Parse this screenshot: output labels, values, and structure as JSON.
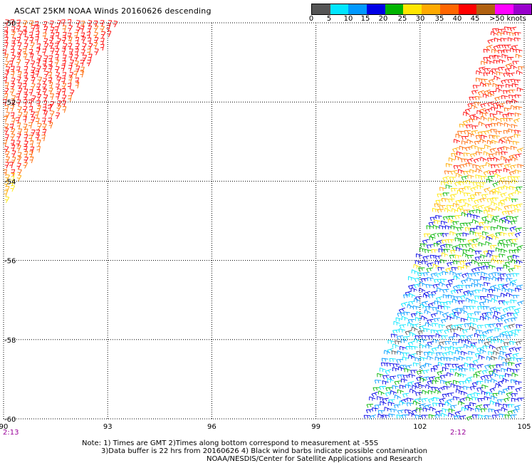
{
  "title": "ASCAT 25KM NOAA Winds 20160626 descending",
  "legend": {
    "colors": [
      "#555555",
      "#00e6ff",
      "#0099ff",
      "#0000e6",
      "#00b400",
      "#ffe600",
      "#ffaa00",
      "#ff6600",
      "#ff0000",
      "#b06010",
      "#ff00ff",
      "#9900cc"
    ],
    "labels": [
      "0",
      "5",
      "10",
      "15",
      "20",
      "25",
      "30",
      "35",
      "40",
      "45",
      ">50 knots"
    ]
  },
  "axes": {
    "lon_labels": [
      "90",
      "93",
      "96",
      "99",
      "102",
      "105"
    ],
    "lat_labels": [
      "-50",
      "-52",
      "-54",
      "-56",
      "-58",
      "-60"
    ],
    "lon_range": [
      90,
      105
    ],
    "lat_range": [
      -50,
      -60
    ]
  },
  "times": {
    "left": "2:13",
    "right": "2:12"
  },
  "notes": [
    "Note: 1) Times are GMT 2)Times along bottom correspond to measurement at -55S",
    "3)Data buffer is 22 hrs from 20160626 4) Black wind barbs indicate possible contamination",
    "NOAA/NESDIS/Center for Satellite Applications and Research"
  ],
  "colors": {
    "time_label": "#990099",
    "grid": "#000000"
  }
}
